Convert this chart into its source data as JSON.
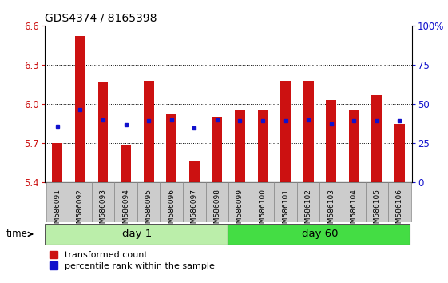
{
  "title": "GDS4374 / 8165398",
  "samples": [
    "GSM586091",
    "GSM586092",
    "GSM586093",
    "GSM586094",
    "GSM586095",
    "GSM586096",
    "GSM586097",
    "GSM586098",
    "GSM586099",
    "GSM586100",
    "GSM586101",
    "GSM586102",
    "GSM586103",
    "GSM586104",
    "GSM586105",
    "GSM586106"
  ],
  "red_values": [
    5.7,
    6.52,
    6.17,
    5.68,
    6.18,
    5.93,
    5.56,
    5.9,
    5.96,
    5.96,
    6.18,
    6.18,
    6.03,
    5.96,
    6.07,
    5.85
  ],
  "blue_y": [
    5.83,
    5.96,
    5.88,
    5.84,
    5.87,
    5.88,
    5.82,
    5.88,
    5.87,
    5.87,
    5.87,
    5.88,
    5.85,
    5.87,
    5.87,
    5.87
  ],
  "ylim": [
    5.4,
    6.6
  ],
  "yticks_left": [
    5.4,
    5.7,
    6.0,
    6.3,
    6.6
  ],
  "right_ytick_pcts": [
    0,
    25,
    50,
    75,
    100
  ],
  "right_ytick_labels": [
    "0",
    "25",
    "50",
    "75",
    "100%"
  ],
  "baseline": 5.4,
  "day1_count": 8,
  "day60_count": 8,
  "bar_color": "#cc1111",
  "blue_color": "#1111cc",
  "day1_bg": "#bbeeaa",
  "day60_bg": "#44dd44",
  "bar_width": 0.45,
  "tick_color_left": "#cc1111",
  "tick_color_right": "#1111cc",
  "plot_bg": "#ffffff",
  "xlabel_bg": "#cccccc",
  "grid_linestyle": ":",
  "grid_color": "#000000",
  "grid_lw": 0.7
}
